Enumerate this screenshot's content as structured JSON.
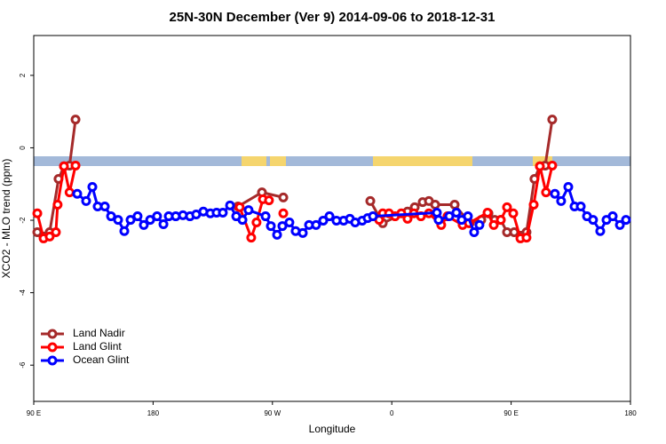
{
  "chart_data": {
    "type": "line",
    "title": "25N-30N December (Ver 9)   2014-09-06 to 2018-12-31",
    "x_label": "Longitude",
    "y_label": "XCO2 - MLO trend (ppm)",
    "xlim": [
      90,
      540
    ],
    "ylim": [
      -7,
      3.1
    ],
    "xticks": [
      {
        "value": 90,
        "label": "90 E"
      },
      180,
      {
        "value": 270,
        "label": "90 W"
      },
      {
        "value": 360,
        "label": "0"
      },
      {
        "value": 450,
        "label": "90 E"
      },
      {
        "value": 540,
        "label": "180"
      }
    ],
    "yticks": [
      -6,
      -4,
      -2,
      0,
      2
    ],
    "legend": "bottom-left",
    "series": [
      {
        "name": "Land Nadir",
        "color": "#a52a2a",
        "x": [
          92.7,
          97.4,
          102,
          108.7,
          112.8,
          117,
          121.5,
          null,
          244,
          262.1,
          278.2,
          null,
          343.8,
          353.2,
          371.9,
          377.3,
          383.3,
          388,
          392.7,
          407.4,
          418.8,
          427.5,
          432.9,
          437.6,
          442.2,
          446.9,
          452.3,
          461.6,
          467.6,
          471.7,
          475.7,
          481
        ],
        "values": [
          -2.33,
          -2.45,
          -2.33,
          -0.86,
          -0.51,
          -0.49,
          0.78,
          null,
          -1.62,
          -1.23,
          -1.37,
          null,
          -1.47,
          -2.08,
          -1.76,
          -1.64,
          -1.5,
          -1.47,
          -1.57,
          -1.57,
          -2.08,
          -1.99,
          -1.81,
          -1.99,
          -1.99,
          -2.33,
          -2.33,
          -2.33,
          -0.86,
          -0.51,
          -0.49,
          0.78
        ]
      },
      {
        "name": "Land Glint",
        "color": "#ff0000",
        "x": [
          92.7,
          97.4,
          102,
          106.7,
          108,
          112.8,
          117,
          121.5,
          null,
          245.3,
          254,
          258,
          262.8,
          267.4,
          null,
          278.2,
          null,
          350.5,
          353.2,
          357.9,
          362.5,
          367.2,
          371.9,
          376.6,
          382,
          388,
          397.3,
          402,
          413.4,
          418.1,
          432.2,
          436.9,
          442.2,
          446.9,
          451.6,
          457,
          461.6,
          467,
          471.7,
          476.3,
          481
        ],
        "values": [
          -1.81,
          -2.5,
          -2.45,
          -2.33,
          -1.57,
          -0.51,
          -1.23,
          -0.49,
          null,
          -1.64,
          -2.48,
          -2.06,
          -1.42,
          -1.45,
          null,
          -1.81,
          null,
          -1.99,
          -1.81,
          -1.81,
          -1.89,
          -1.81,
          -1.96,
          -1.81,
          -1.89,
          -1.81,
          -2.13,
          -1.89,
          -2.13,
          -2.08,
          -1.79,
          -2.13,
          -1.99,
          -1.64,
          -1.81,
          -2.5,
          -2.48,
          -1.57,
          -0.51,
          -1.23,
          -0.49
        ]
      },
      {
        "name": "Ocean Glint",
        "color": "#0000ff",
        "x": [
          122.8,
          129.5,
          134.2,
          138.2,
          143.6,
          148.3,
          153.6,
          158.3,
          163,
          168.3,
          173,
          177.8,
          183,
          187.8,
          191.8,
          197.1,
          202.5,
          207.8,
          212.5,
          217.9,
          223.2,
          227.9,
          232.6,
          238,
          242.7,
          247.4,
          252,
          264.8,
          268.8,
          273.5,
          277.5,
          282.8,
          287.5,
          292.9,
          297.6,
          302.9,
          308.3,
          313,
          318.3,
          323.7,
          328.4,
          332.4,
          337.7,
          341.8,
          345.8,
          394,
          395.3,
          403.4,
          408.7,
          412.7,
          417.4,
          422.1,
          426.1,
          null,
          483,
          487.7,
          493.1,
          497.8,
          502.5,
          507.2,
          511.8,
          517.2,
          521.9,
          526.6,
          532,
          536.6
        ],
        "values": [
          -1.27,
          -1.47,
          -1.08,
          -1.62,
          -1.62,
          -1.89,
          -1.99,
          -2.3,
          -1.99,
          -1.89,
          -2.13,
          -1.99,
          -1.89,
          -2.11,
          -1.89,
          -1.89,
          -1.86,
          -1.89,
          -1.84,
          -1.76,
          -1.81,
          -1.79,
          -1.79,
          -1.59,
          -1.89,
          -1.99,
          -1.72,
          -1.89,
          -2.16,
          -2.4,
          -2.16,
          -2.06,
          -2.3,
          -2.35,
          -2.13,
          -2.13,
          -2.01,
          -1.89,
          -2.01,
          -2.01,
          -1.96,
          -2.06,
          -2.01,
          -1.94,
          -1.89,
          -1.79,
          -1.99,
          -1.89,
          -1.79,
          -1.99,
          -1.89,
          -2.33,
          -2.13,
          null,
          -1.27,
          -1.47,
          -1.08,
          -1.62,
          -1.62,
          -1.89,
          -1.99,
          -2.3,
          -1.99,
          -1.89,
          -2.13,
          -1.99
        ]
      }
    ]
  }
}
